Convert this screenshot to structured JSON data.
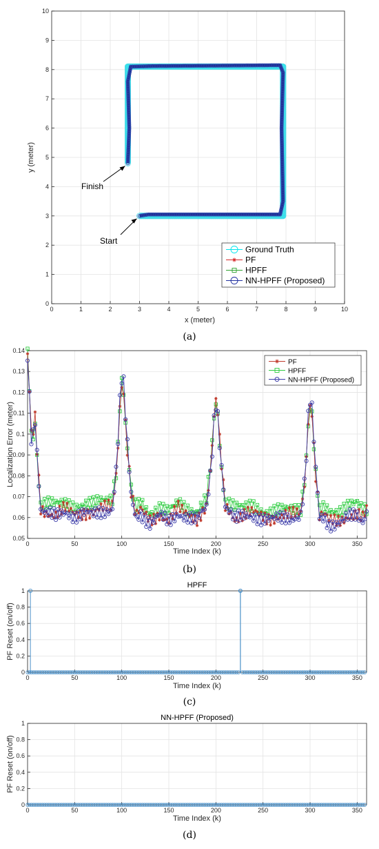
{
  "chart_data": [
    {
      "id": "a",
      "type": "line",
      "caption": "(a)",
      "xlabel": "x (meter)",
      "ylabel": "y (meter)",
      "xlim": [
        0,
        10
      ],
      "ylim": [
        0,
        10
      ],
      "xticks": [
        "0",
        "1",
        "2",
        "3",
        "4",
        "5",
        "6",
        "7",
        "8",
        "9",
        "10"
      ],
      "yticks": [
        "0",
        "1",
        "2",
        "3",
        "4",
        "5",
        "6",
        "7",
        "8",
        "9",
        "10"
      ],
      "grid": true,
      "legend_position": "bottom-right",
      "annotations": [
        {
          "text": "Finish",
          "x": 2.6,
          "y": 4.8
        },
        {
          "text": "Start",
          "x": 3.0,
          "y": 3.0
        }
      ],
      "series": [
        {
          "name": "Ground Truth",
          "color": "#00e5ee",
          "marker": "circle",
          "x": [
            3.0,
            7.9,
            7.9,
            2.6,
            2.6
          ],
          "y": [
            3.0,
            3.0,
            8.1,
            8.1,
            4.8
          ]
        },
        {
          "name": "PF",
          "color": "#d62728",
          "marker": "asterisk",
          "x": [],
          "y": []
        },
        {
          "name": "HPFF",
          "color": "#2ca02c",
          "marker": "square",
          "x": [],
          "y": []
        },
        {
          "name": "NN-HPFF (Proposed)",
          "color": "#1f2f9f",
          "marker": "circle",
          "x": [
            3.0,
            3.3,
            7.8,
            7.9,
            7.85,
            7.9,
            7.8,
            3.5,
            2.7,
            2.6,
            2.65,
            2.6
          ],
          "y": [
            3.0,
            3.05,
            3.05,
            3.5,
            6.0,
            7.9,
            8.15,
            8.12,
            8.1,
            7.6,
            6.0,
            4.8
          ]
        }
      ]
    },
    {
      "id": "b",
      "type": "line",
      "caption": "(b)",
      "xlabel": "Time Index (k)",
      "ylabel": "Localization Error (meter)",
      "xlim": [
        0,
        360
      ],
      "ylim": [
        0.05,
        0.14
      ],
      "xticks": [
        "0",
        "50",
        "100",
        "150",
        "200",
        "250",
        "300",
        "350"
      ],
      "yticks": [
        "0.05",
        "0.06",
        "0.07",
        "0.08",
        "0.09",
        "0.1",
        "0.11",
        "0.12",
        "0.13",
        "0.14"
      ],
      "grid": true,
      "legend_position": "top-right",
      "series": [
        {
          "name": "PF",
          "color": "#c0392b",
          "marker": "asterisk",
          "x": [
            1,
            3,
            5,
            8,
            11,
            14,
            20,
            30,
            40,
            50,
            60,
            70,
            80,
            90,
            95,
            98,
            100,
            102,
            105,
            110,
            115,
            120,
            130,
            140,
            150,
            160,
            170,
            180,
            190,
            195,
            198,
            200,
            202,
            205,
            210,
            215,
            220,
            230,
            240,
            250,
            260,
            270,
            280,
            290,
            295,
            298,
            300,
            302,
            305,
            310,
            315,
            320,
            330,
            340,
            350,
            356,
            360
          ],
          "y": [
            0.137,
            0.102,
            0.097,
            0.108,
            0.085,
            0.065,
            0.063,
            0.061,
            0.064,
            0.062,
            0.063,
            0.062,
            0.064,
            0.066,
            0.085,
            0.115,
            0.123,
            0.122,
            0.098,
            0.072,
            0.06,
            0.063,
            0.059,
            0.062,
            0.058,
            0.064,
            0.062,
            0.06,
            0.065,
            0.085,
            0.108,
            0.114,
            0.11,
            0.09,
            0.066,
            0.064,
            0.06,
            0.061,
            0.062,
            0.061,
            0.06,
            0.06,
            0.061,
            0.063,
            0.08,
            0.108,
            0.113,
            0.112,
            0.085,
            0.06,
            0.061,
            0.058,
            0.059,
            0.061,
            0.061,
            0.059,
            0.063
          ]
        },
        {
          "name": "HPFF",
          "color": "#2ecc40",
          "marker": "square",
          "x": [
            1,
            3,
            5,
            8,
            11,
            14,
            20,
            30,
            40,
            50,
            60,
            70,
            80,
            90,
            95,
            98,
            100,
            102,
            105,
            110,
            115,
            120,
            130,
            140,
            150,
            160,
            170,
            180,
            190,
            195,
            198,
            200,
            202,
            205,
            210,
            215,
            220,
            230,
            240,
            250,
            260,
            270,
            280,
            290,
            295,
            298,
            300,
            302,
            305,
            310,
            315,
            320,
            330,
            340,
            350,
            356,
            360
          ],
          "y": [
            0.138,
            0.106,
            0.095,
            0.106,
            0.083,
            0.067,
            0.068,
            0.066,
            0.066,
            0.066,
            0.067,
            0.066,
            0.068,
            0.07,
            0.086,
            0.114,
            0.126,
            0.12,
            0.097,
            0.073,
            0.063,
            0.067,
            0.063,
            0.065,
            0.062,
            0.067,
            0.065,
            0.063,
            0.068,
            0.087,
            0.108,
            0.113,
            0.11,
            0.088,
            0.068,
            0.068,
            0.066,
            0.064,
            0.065,
            0.064,
            0.063,
            0.063,
            0.064,
            0.065,
            0.082,
            0.105,
            0.112,
            0.11,
            0.085,
            0.062,
            0.064,
            0.063,
            0.064,
            0.066,
            0.066,
            0.063,
            0.064
          ]
        },
        {
          "name": "NN-HPFF (Proposed)",
          "color": "#3b3ba8",
          "marker": "circle",
          "x": [
            1,
            3,
            5,
            8,
            11,
            14,
            20,
            30,
            40,
            50,
            60,
            70,
            80,
            90,
            95,
            98,
            100,
            102,
            105,
            110,
            115,
            120,
            130,
            140,
            150,
            160,
            170,
            180,
            190,
            195,
            198,
            200,
            202,
            205,
            210,
            215,
            220,
            230,
            240,
            250,
            260,
            270,
            280,
            290,
            295,
            298,
            300,
            302,
            305,
            310,
            315,
            320,
            330,
            340,
            350,
            356,
            360
          ],
          "y": [
            0.138,
            0.1,
            0.098,
            0.108,
            0.084,
            0.064,
            0.062,
            0.06,
            0.063,
            0.061,
            0.062,
            0.061,
            0.063,
            0.065,
            0.088,
            0.116,
            0.126,
            0.124,
            0.1,
            0.07,
            0.059,
            0.062,
            0.058,
            0.061,
            0.057,
            0.062,
            0.061,
            0.059,
            0.064,
            0.084,
            0.107,
            0.115,
            0.11,
            0.09,
            0.066,
            0.063,
            0.059,
            0.06,
            0.061,
            0.06,
            0.059,
            0.059,
            0.06,
            0.062,
            0.08,
            0.108,
            0.115,
            0.112,
            0.088,
            0.059,
            0.06,
            0.057,
            0.058,
            0.06,
            0.06,
            0.058,
            0.063
          ]
        }
      ]
    },
    {
      "id": "c",
      "type": "stem",
      "caption": "(c)",
      "title": "HPFF",
      "xlabel": "Time Index (k)",
      "ylabel": "PF Reset (on/off)",
      "xlim": [
        0,
        360
      ],
      "ylim": [
        0,
        1
      ],
      "xticks": [
        "0",
        "50",
        "100",
        "150",
        "200",
        "250",
        "300",
        "350"
      ],
      "yticks": [
        "0",
        "0.2",
        "0.4",
        "0.6",
        "0.8",
        "1"
      ],
      "grid": true,
      "series": [
        {
          "name": "",
          "color": "#4a90c8",
          "marker": "circle",
          "on_indices": [
            3,
            226
          ],
          "length": 360
        }
      ]
    },
    {
      "id": "d",
      "type": "stem",
      "caption": "(d)",
      "title": "NN-HPFF (Proposed)",
      "xlabel": "Time Index (k)",
      "ylabel": "PF Reset (on/off)",
      "xlim": [
        0,
        360
      ],
      "ylim": [
        0,
        1
      ],
      "xticks": [
        "0",
        "50",
        "100",
        "150",
        "200",
        "250",
        "300",
        "350"
      ],
      "yticks": [
        "0",
        "0.2",
        "0.4",
        "0.6",
        "0.8",
        "1"
      ],
      "grid": true,
      "series": [
        {
          "name": "",
          "color": "#4a90c8",
          "marker": "circle",
          "on_indices": [],
          "length": 360
        }
      ]
    }
  ]
}
